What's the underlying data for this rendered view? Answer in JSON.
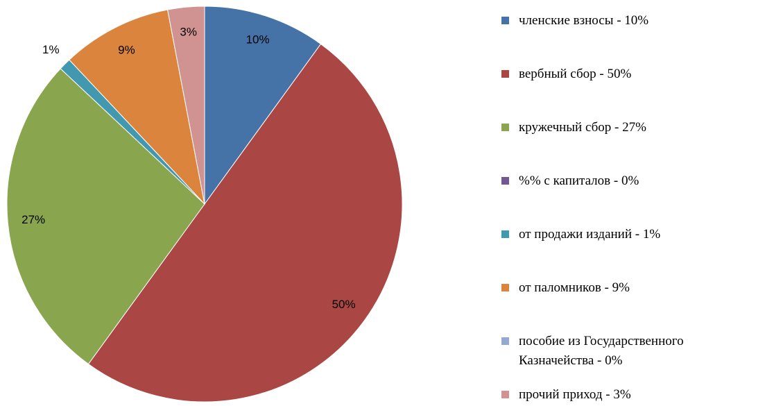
{
  "chart_data": {
    "type": "pie",
    "categories": [
      "членские взносы - 10%",
      "вербный сбор - 50%",
      "кружечный сбор - 27%",
      "%% с капиталов - 0%",
      "от продажи изданий - 1%",
      "от паломников - 9%",
      "пособие из Государственного Казначейства - 0%",
      "прочий приход - 3%"
    ],
    "values": [
      10,
      50,
      27,
      0,
      1,
      9,
      0,
      3
    ],
    "value_labels": [
      "10%",
      "50%",
      "27%",
      null,
      "1%",
      "9%",
      null,
      "3%"
    ],
    "colors": [
      "#4572a7",
      "#aa4643",
      "#89a54e",
      "#71588f",
      "#4198af",
      "#db843d",
      "#93a9cf",
      "#d19392"
    ],
    "legend": "right"
  }
}
